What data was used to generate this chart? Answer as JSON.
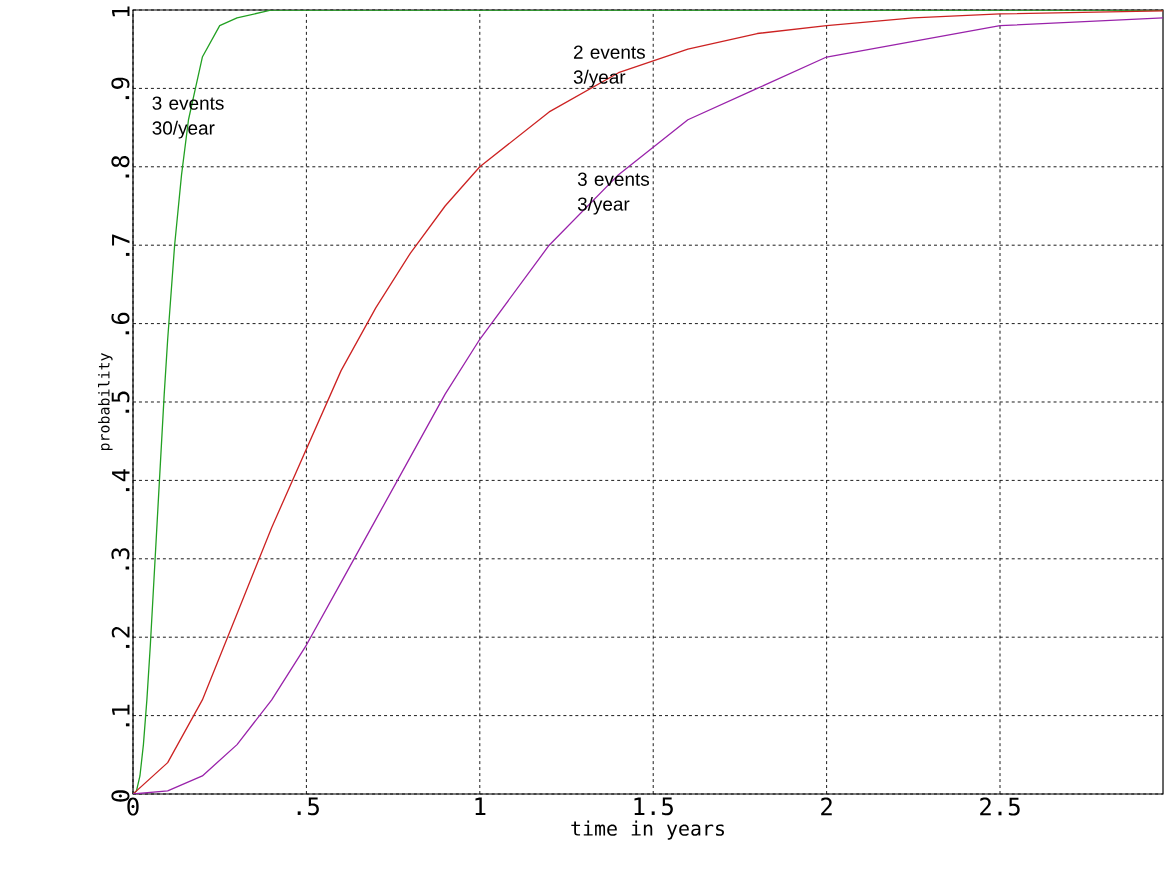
{
  "chart_data": {
    "type": "line",
    "xlabel": "time in years",
    "ylabel": "probability",
    "xlim": [
      0,
      2.97
    ],
    "ylim": [
      0,
      1
    ],
    "xticks": [
      0,
      {
        "value": 0.5,
        "label": ".5"
      },
      1,
      1.5,
      2,
      2.5
    ],
    "yticks": [
      0,
      {
        "value": 0.1,
        "label": ".1"
      },
      {
        "value": 0.2,
        "label": ".2"
      },
      {
        "value": 0.3,
        "label": ".3"
      },
      {
        "value": 0.4,
        "label": ".4"
      },
      {
        "value": 0.5,
        "label": ".5"
      },
      {
        "value": 0.6,
        "label": ".6"
      },
      {
        "value": 0.7,
        "label": ".7"
      },
      {
        "value": 0.8,
        "label": ".8"
      },
      {
        "value": 0.9,
        "label": ".9"
      },
      1
    ],
    "grid": true,
    "marker": "none",
    "line_style": "solid",
    "series": [
      {
        "color": "#22a022",
        "x": [
          0,
          0.01,
          0.02,
          0.03,
          0.04,
          0.05,
          0.06,
          0.07,
          0.08,
          0.09,
          0.1,
          0.12,
          0.14,
          0.16,
          0.18,
          0.2,
          0.25,
          0.3,
          0.4,
          1,
          2,
          2.97
        ],
        "values": [
          0,
          0.004,
          0.023,
          0.063,
          0.12,
          0.19,
          0.27,
          0.35,
          0.43,
          0.51,
          0.58,
          0.7,
          0.79,
          0.86,
          0.9,
          0.94,
          0.98,
          0.99,
          1,
          1,
          1,
          1
        ]
      },
      {
        "color": "#cc2222",
        "x": [
          0,
          0.1,
          0.2,
          0.3,
          0.4,
          0.5,
          0.6,
          0.7,
          0.8,
          0.9,
          1,
          1.2,
          1.4,
          1.6,
          1.8,
          2,
          2.25,
          2.5,
          2.97
        ],
        "values": [
          0,
          0.04,
          0.12,
          0.23,
          0.34,
          0.44,
          0.54,
          0.62,
          0.69,
          0.75,
          0.8,
          0.87,
          0.92,
          0.95,
          0.97,
          0.98,
          0.99,
          0.995,
          0.999
        ]
      },
      {
        "color": "#9922aa",
        "x": [
          0,
          0.1,
          0.2,
          0.3,
          0.4,
          0.5,
          0.6,
          0.7,
          0.8,
          0.9,
          1,
          1.2,
          1.4,
          1.6,
          1.8,
          2,
          2.25,
          2.5,
          2.97
        ],
        "values": [
          0,
          0.004,
          0.023,
          0.063,
          0.12,
          0.19,
          0.27,
          0.35,
          0.43,
          0.51,
          0.58,
          0.7,
          0.79,
          0.86,
          0.9,
          0.94,
          0.96,
          0.98,
          0.99
        ]
      }
    ],
    "annotations": [
      "3 events 30/year",
      "2 events 3/year",
      "3 events 3/year"
    ]
  }
}
